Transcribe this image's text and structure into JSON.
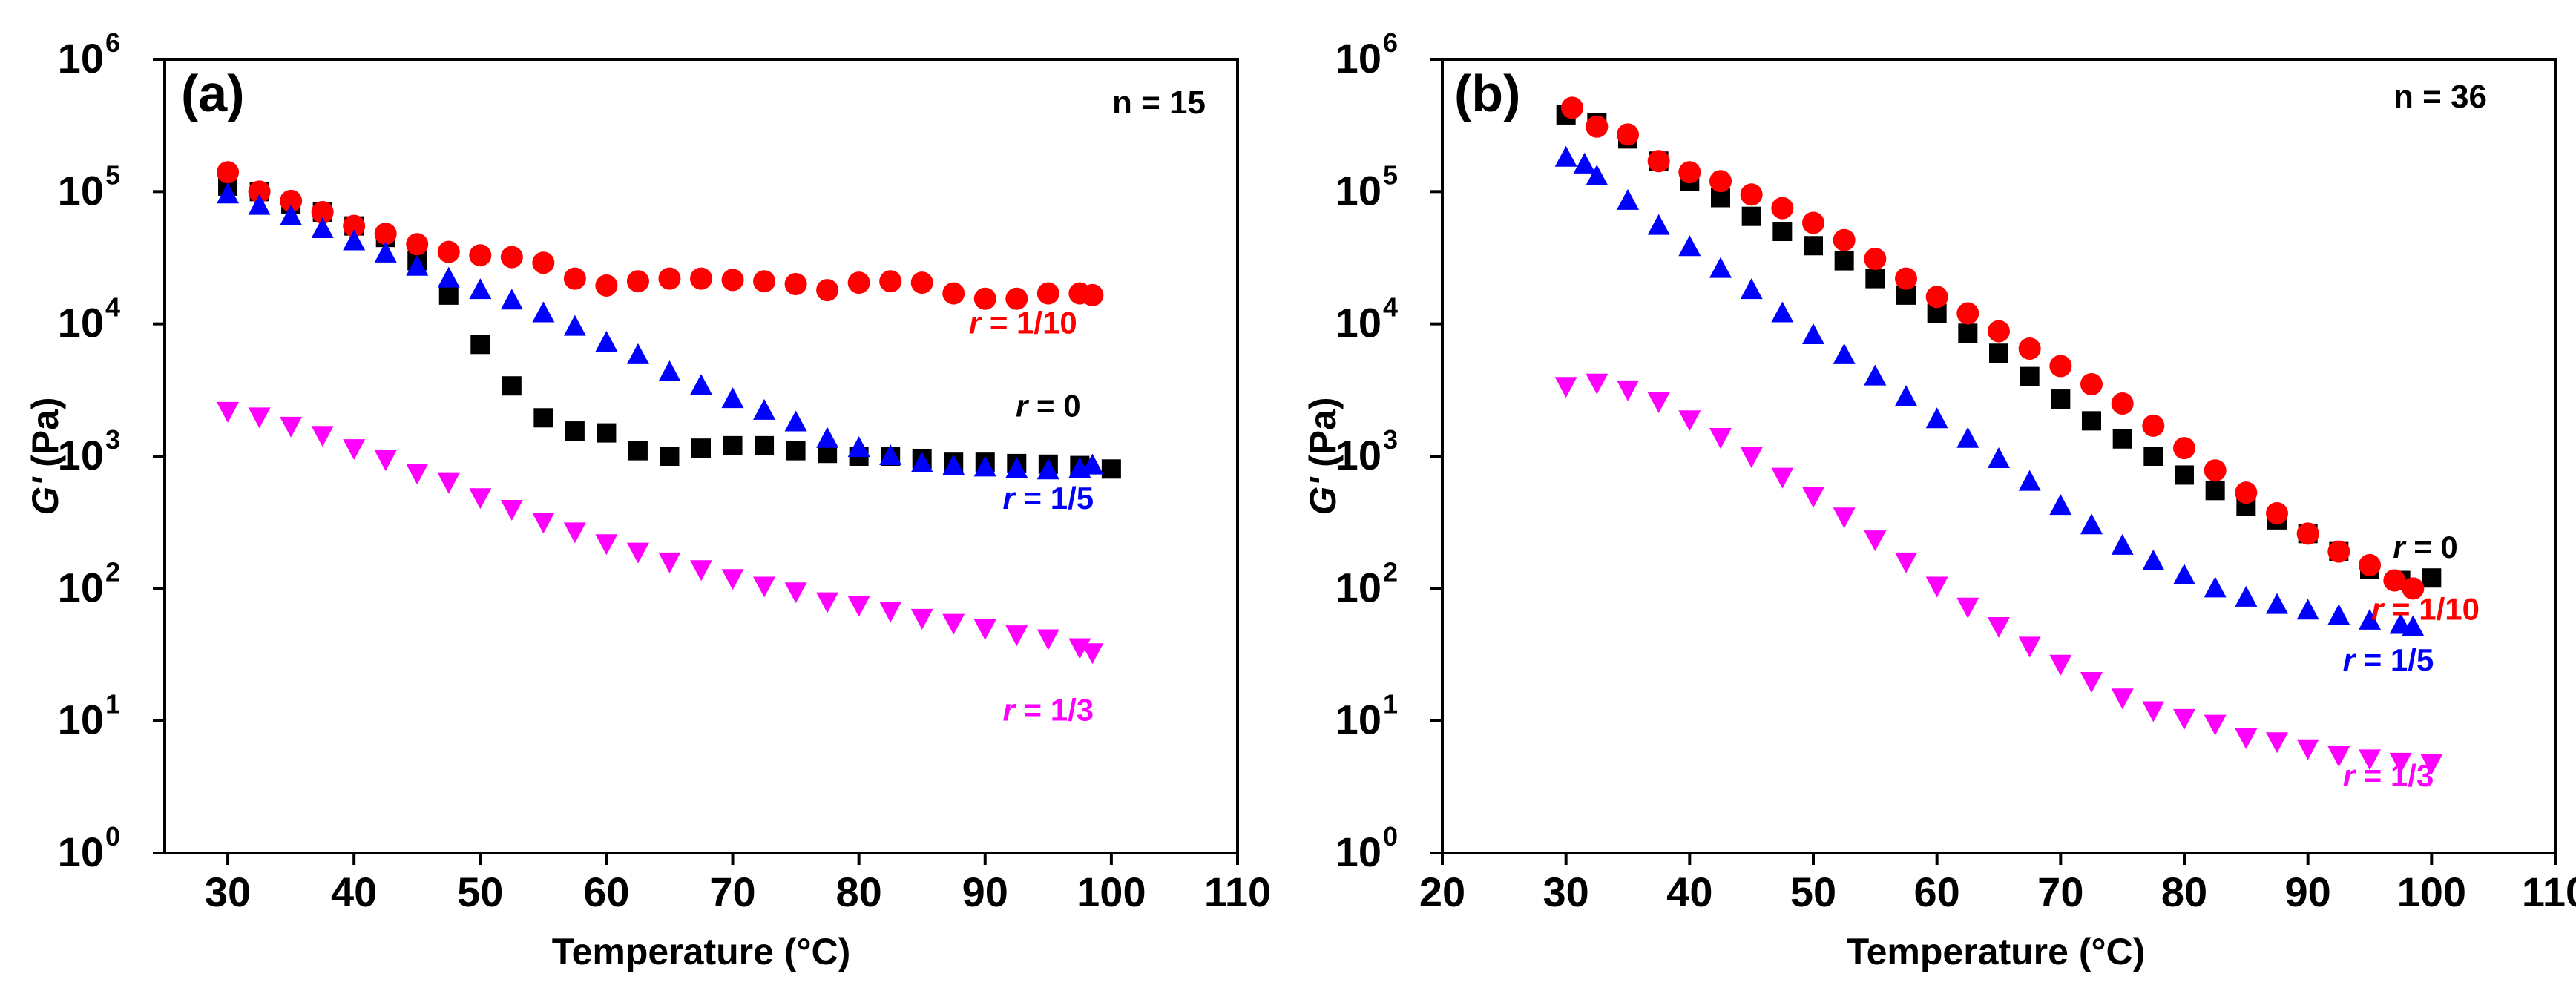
{
  "chart_data": [
    {
      "type": "scatter",
      "panel_label": "(a)",
      "annotation": "n = 15",
      "xlabel": "Temperature (°C)",
      "ylabel_italic": "G'",
      "ylabel_unit": " (Pa)",
      "xlim": [
        25,
        110
      ],
      "xticks": [
        30,
        40,
        50,
        60,
        70,
        80,
        90,
        100,
        110
      ],
      "ylog": true,
      "ylim_exp": [
        0,
        6
      ],
      "ytick_base": "10",
      "yticks_exp": [
        "0",
        "1",
        "2",
        "3",
        "4",
        "5",
        "6"
      ],
      "series": [
        {
          "name": "r = 0",
          "label_italic": "r",
          "label_rest": " = 0",
          "color": "#000000",
          "marker": "square",
          "label_anchor": [
            95,
            2000
          ],
          "points": [
            [
              30,
              110000
            ],
            [
              32.5,
              100000
            ],
            [
              35,
              80000
            ],
            [
              37.5,
              70000
            ],
            [
              40,
              55000
            ],
            [
              42.5,
              45000
            ],
            [
              45,
              30000
            ],
            [
              47.5,
              16500
            ],
            [
              50,
              7000
            ],
            [
              52.5,
              3400
            ],
            [
              55,
              1950
            ],
            [
              57.5,
              1550
            ],
            [
              60,
              1500
            ],
            [
              62.5,
              1100
            ],
            [
              65,
              1000
            ],
            [
              67.5,
              1150
            ],
            [
              70,
              1200
            ],
            [
              72.5,
              1200
            ],
            [
              75,
              1100
            ],
            [
              77.5,
              1050
            ],
            [
              80,
              1000
            ],
            [
              82.5,
              1000
            ],
            [
              85,
              950
            ],
            [
              87.5,
              900
            ],
            [
              90,
              900
            ],
            [
              92.5,
              880
            ],
            [
              95,
              870
            ],
            [
              97.5,
              850
            ],
            [
              100,
              800
            ]
          ]
        },
        {
          "name": "r = 1/10",
          "label_italic": "r",
          "label_rest": " = 1/10",
          "color": "#ff0000",
          "marker": "circle",
          "label_anchor": [
            93,
            8500
          ],
          "points": [
            [
              30,
              140000
            ],
            [
              32.5,
              100000
            ],
            [
              35,
              85000
            ],
            [
              37.5,
              70000
            ],
            [
              40,
              55000
            ],
            [
              42.5,
              48000
            ],
            [
              45,
              40000
            ],
            [
              47.5,
              35000
            ],
            [
              50,
              33000
            ],
            [
              52.5,
              32000
            ],
            [
              55,
              29000
            ],
            [
              57.5,
              22000
            ],
            [
              60,
              19500
            ],
            [
              62.5,
              21000
            ],
            [
              65,
              22000
            ],
            [
              67.5,
              22000
            ],
            [
              70,
              21500
            ],
            [
              72.5,
              21000
            ],
            [
              75,
              20000
            ],
            [
              77.5,
              18000
            ],
            [
              80,
              20500
            ],
            [
              82.5,
              21000
            ],
            [
              85,
              20500
            ],
            [
              87.5,
              17000
            ],
            [
              90,
              15500
            ],
            [
              92.5,
              15500
            ],
            [
              95,
              17000
            ],
            [
              97.5,
              17000
            ],
            [
              98.5,
              16500
            ]
          ]
        },
        {
          "name": "r = 1/5",
          "label_italic": "r",
          "label_rest": " = 1/5",
          "color": "#0000ff",
          "marker": "triangle-up",
          "label_anchor": [
            95,
            400
          ],
          "points": [
            [
              30,
              95000
            ],
            [
              32.5,
              78000
            ],
            [
              35,
              65000
            ],
            [
              37.5,
              52000
            ],
            [
              40,
              42000
            ],
            [
              42.5,
              34000
            ],
            [
              45,
              27000
            ],
            [
              47.5,
              22000
            ],
            [
              50,
              18000
            ],
            [
              52.5,
              15000
            ],
            [
              55,
              12000
            ],
            [
              57.5,
              9500
            ],
            [
              60,
              7200
            ],
            [
              62.5,
              5800
            ],
            [
              65,
              4300
            ],
            [
              67.5,
              3400
            ],
            [
              70,
              2700
            ],
            [
              72.5,
              2200
            ],
            [
              75,
              1800
            ],
            [
              77.5,
              1350
            ],
            [
              80,
              1150
            ],
            [
              82.5,
              1000
            ],
            [
              85,
              880
            ],
            [
              87.5,
              840
            ],
            [
              90,
              820
            ],
            [
              92.5,
              800
            ],
            [
              95,
              780
            ],
            [
              97.5,
              800
            ],
            [
              98.5,
              850
            ]
          ]
        },
        {
          "name": "r = 1/3",
          "label_italic": "r",
          "label_rest": " = 1/3",
          "color": "#ff00ff",
          "marker": "triangle-down",
          "label_anchor": [
            95,
            10
          ],
          "points": [
            [
              30,
              2200
            ],
            [
              32.5,
              2000
            ],
            [
              35,
              1700
            ],
            [
              37.5,
              1450
            ],
            [
              40,
              1150
            ],
            [
              42.5,
              950
            ],
            [
              45,
              750
            ],
            [
              47.5,
              640
            ],
            [
              50,
              490
            ],
            [
              52.5,
              400
            ],
            [
              55,
              320
            ],
            [
              57.5,
              270
            ],
            [
              60,
              220
            ],
            [
              62.5,
              190
            ],
            [
              65,
              160
            ],
            [
              67.5,
              140
            ],
            [
              70,
              120
            ],
            [
              72.5,
              105
            ],
            [
              75,
              95
            ],
            [
              77.5,
              80
            ],
            [
              80,
              75
            ],
            [
              82.5,
              68
            ],
            [
              85,
              60
            ],
            [
              87.5,
              55
            ],
            [
              90,
              50
            ],
            [
              92.5,
              45
            ],
            [
              95,
              42
            ],
            [
              97.5,
              36
            ],
            [
              98.5,
              33
            ]
          ]
        }
      ]
    },
    {
      "type": "scatter",
      "panel_label": "(b)",
      "annotation": "n = 36",
      "xlabel": "Temperature (°C)",
      "ylabel_italic": "G'",
      "ylabel_unit": " (Pa)",
      "xlim": [
        20,
        110
      ],
      "xticks": [
        20,
        30,
        40,
        50,
        60,
        70,
        80,
        90,
        100,
        110
      ],
      "ylog": true,
      "ylim_exp": [
        0,
        6
      ],
      "ytick_base": "10",
      "yticks_exp": [
        "0",
        "1",
        "2",
        "3",
        "4",
        "5",
        "6"
      ],
      "series": [
        {
          "name": "r = 0",
          "label_italic": "r",
          "label_rest": " = 0",
          "color": "#000000",
          "marker": "square",
          "label_anchor": [
            99.5,
            170
          ],
          "points": [
            [
              30,
              380000
            ],
            [
              32.5,
              330000
            ],
            [
              35,
              250000
            ],
            [
              37.5,
              170000
            ],
            [
              40,
              120000
            ],
            [
              42.5,
              90000
            ],
            [
              45,
              65000
            ],
            [
              47.5,
              50000
            ],
            [
              50,
              39000
            ],
            [
              52.5,
              30000
            ],
            [
              55,
              22000
            ],
            [
              57.5,
              16500
            ],
            [
              60,
              12000
            ],
            [
              62.5,
              8500
            ],
            [
              65,
              6000
            ],
            [
              67.5,
              4000
            ],
            [
              70,
              2700
            ],
            [
              72.5,
              1850
            ],
            [
              75,
              1350
            ],
            [
              77.5,
              1000
            ],
            [
              80,
              720
            ],
            [
              82.5,
              550
            ],
            [
              85,
              420
            ],
            [
              87.5,
              330
            ],
            [
              90,
              260
            ],
            [
              92.5,
              190
            ],
            [
              95,
              140
            ],
            [
              97.5,
              115
            ],
            [
              100,
              120
            ]
          ]
        },
        {
          "name": "r = 1/10",
          "label_italic": "r",
          "label_rest": " = 1/10",
          "color": "#ff0000",
          "marker": "circle",
          "label_anchor": [
            99.5,
            58
          ],
          "points": [
            [
              30.5,
              430000
            ],
            [
              32.5,
              310000
            ],
            [
              35,
              270000
            ],
            [
              37.5,
              170000
            ],
            [
              40,
              140000
            ],
            [
              42.5,
              120000
            ],
            [
              45,
              95000
            ],
            [
              47.5,
              75000
            ],
            [
              50,
              58000
            ],
            [
              52.5,
              43000
            ],
            [
              55,
              31000
            ],
            [
              57.5,
              22000
            ],
            [
              60,
              16000
            ],
            [
              62.5,
              12000
            ],
            [
              65,
              8800
            ],
            [
              67.5,
              6500
            ],
            [
              70,
              4800
            ],
            [
              72.5,
              3500
            ],
            [
              75,
              2500
            ],
            [
              77.5,
              1700
            ],
            [
              80,
              1150
            ],
            [
              82.5,
              780
            ],
            [
              85,
              530
            ],
            [
              87.5,
              370
            ],
            [
              90,
              260
            ],
            [
              92.5,
              190
            ],
            [
              95,
              150
            ],
            [
              97,
              115
            ],
            [
              98.5,
              100
            ]
          ]
        },
        {
          "name": "r = 1/5",
          "label_italic": "r",
          "label_rest": " = 1/5",
          "color": "#0000ff",
          "marker": "triangle-up",
          "label_anchor": [
            96.5,
            24
          ],
          "points": [
            [
              30,
              180000
            ],
            [
              31.5,
              160000
            ],
            [
              32.5,
              130000
            ],
            [
              35,
              85000
            ],
            [
              37.5,
              55000
            ],
            [
              40,
              38000
            ],
            [
              42.5,
              26000
            ],
            [
              45,
              18000
            ],
            [
              47.5,
              12000
            ],
            [
              50,
              8200
            ],
            [
              52.5,
              5800
            ],
            [
              55,
              4000
            ],
            [
              57.5,
              2800
            ],
            [
              60,
              1900
            ],
            [
              62.5,
              1350
            ],
            [
              65,
              950
            ],
            [
              67.5,
              640
            ],
            [
              70,
              420
            ],
            [
              72.5,
              300
            ],
            [
              75,
              210
            ],
            [
              77.5,
              160
            ],
            [
              80,
              125
            ],
            [
              82.5,
              100
            ],
            [
              85,
              85
            ],
            [
              87.5,
              75
            ],
            [
              90,
              68
            ],
            [
              92.5,
              62
            ],
            [
              95,
              57
            ],
            [
              97.5,
              53
            ],
            [
              98.5,
              51
            ]
          ]
        },
        {
          "name": "r = 1/3",
          "label_italic": "r",
          "label_rest": " = 1/3",
          "color": "#ff00ff",
          "marker": "triangle-down",
          "label_anchor": [
            96.5,
            3.2
          ],
          "points": [
            [
              30,
              3400
            ],
            [
              32.5,
              3600
            ],
            [
              35,
              3200
            ],
            [
              37.5,
              2600
            ],
            [
              40,
              1900
            ],
            [
              42.5,
              1400
            ],
            [
              45,
              1000
            ],
            [
              47.5,
              700
            ],
            [
              50,
              500
            ],
            [
              52.5,
              350
            ],
            [
              55,
              235
            ],
            [
              57.5,
              160
            ],
            [
              60,
              105
            ],
            [
              62.5,
              73
            ],
            [
              65,
              52
            ],
            [
              67.5,
              37
            ],
            [
              70,
              27
            ],
            [
              72.5,
              20
            ],
            [
              75,
              15
            ],
            [
              77.5,
              12
            ],
            [
              80,
              10.5
            ],
            [
              82.5,
              9.5
            ],
            [
              85,
              7.5
            ],
            [
              87.5,
              7
            ],
            [
              90,
              6.2
            ],
            [
              92.5,
              5.5
            ],
            [
              95,
              5.2
            ],
            [
              97.5,
              4.9
            ],
            [
              100,
              4.8
            ]
          ]
        }
      ]
    }
  ]
}
